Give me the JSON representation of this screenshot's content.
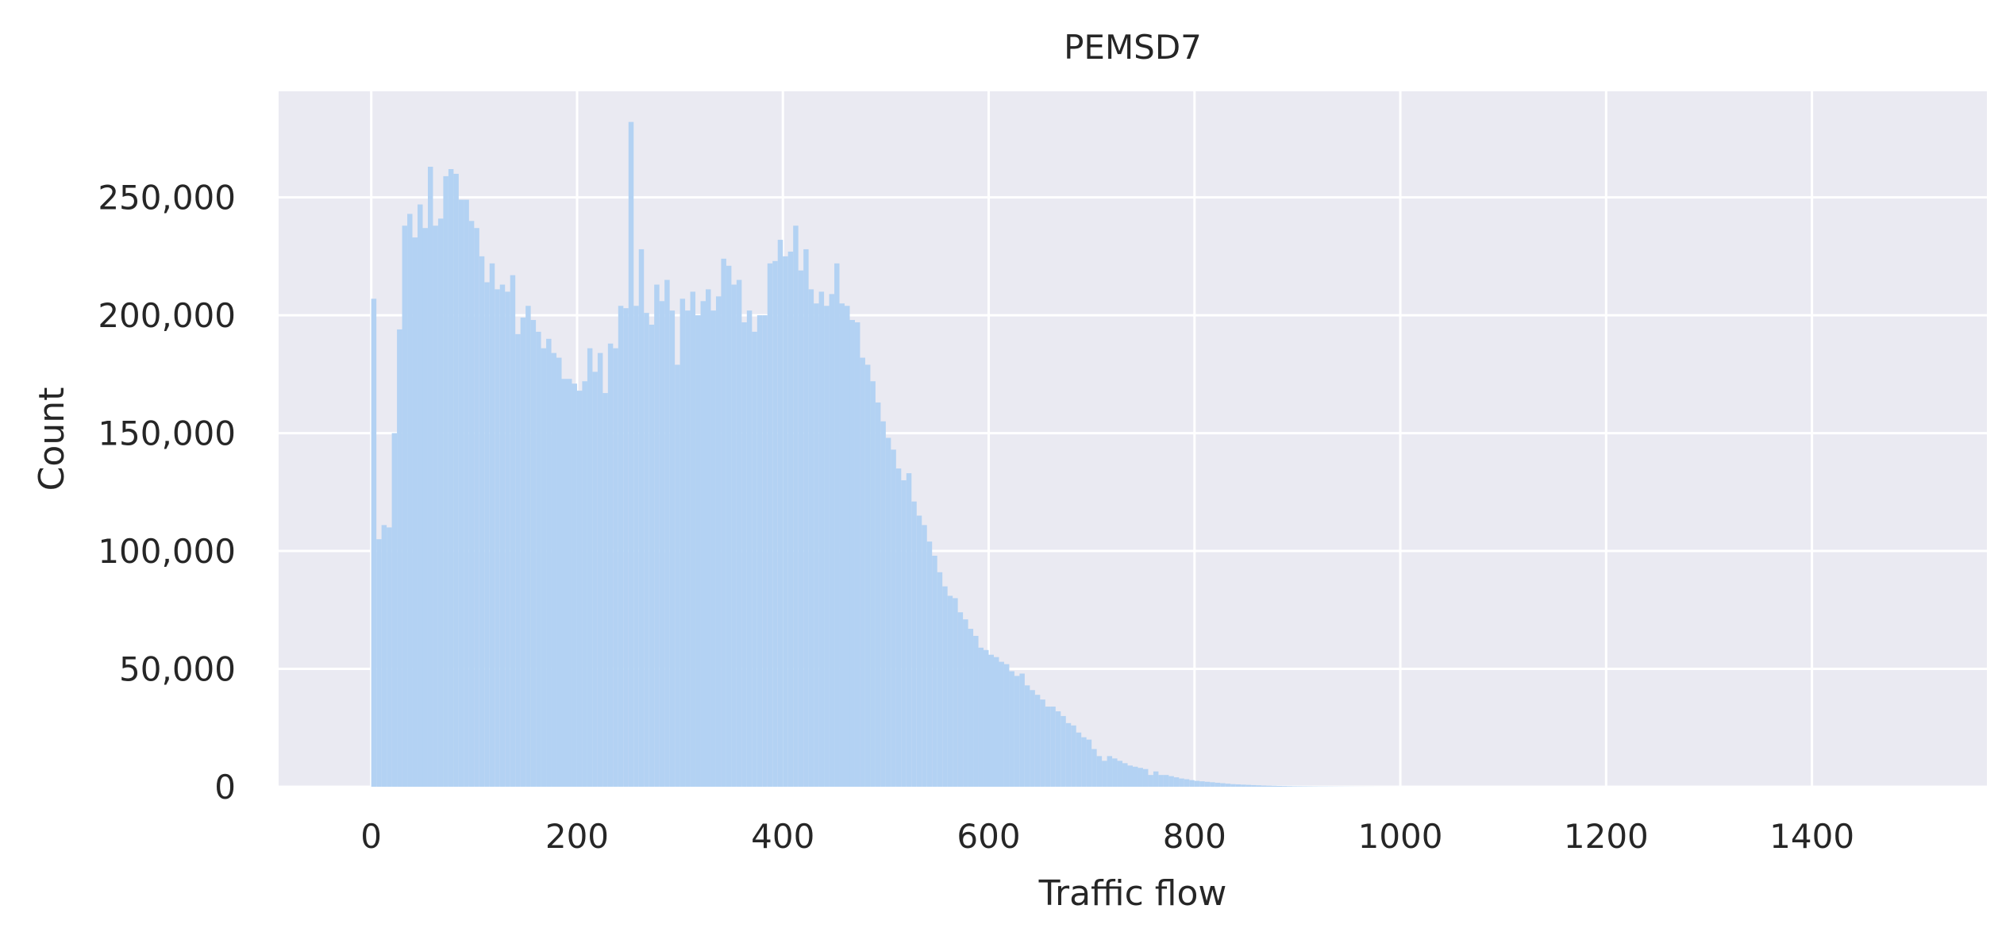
{
  "chart_data": {
    "type": "histogram",
    "title": "PEMSD7",
    "xlabel": "Traffic flow",
    "ylabel": "Count",
    "xlim": [
      -90,
      1570
    ],
    "ylim": [
      0,
      295000
    ],
    "x_ticks": [
      0,
      200,
      400,
      600,
      800,
      1000,
      1200,
      1400
    ],
    "x_tick_labels": [
      "0",
      "200",
      "400",
      "600",
      "800",
      "1000",
      "1200",
      "1400"
    ],
    "y_ticks": [
      0,
      50000,
      100000,
      150000,
      200000,
      250000
    ],
    "y_tick_labels": [
      "0",
      "50,000",
      "100,000",
      "150,000",
      "200,000",
      "250,000"
    ],
    "grid": true,
    "legend": false,
    "colors": {
      "background": "#eaeaf2",
      "grid": "#ffffff",
      "bars": "#b3d2f3"
    },
    "bin_start": 0,
    "bin_width": 5,
    "values": [
      207000,
      105000,
      111000,
      110000,
      150000,
      194000,
      238000,
      243000,
      233000,
      247000,
      237000,
      263000,
      238000,
      241000,
      259000,
      262000,
      260000,
      249000,
      249000,
      240000,
      237000,
      225000,
      214000,
      222000,
      211000,
      213000,
      210000,
      217000,
      192000,
      199000,
      204000,
      198000,
      193000,
      186000,
      190000,
      184000,
      182000,
      173000,
      173000,
      171000,
      168000,
      172000,
      186000,
      176000,
      184000,
      167000,
      188000,
      186000,
      204000,
      203000,
      282000,
      204000,
      228000,
      201000,
      196000,
      213000,
      206000,
      215000,
      202000,
      179000,
      207000,
      202000,
      210000,
      200000,
      206000,
      211000,
      202000,
      208000,
      224000,
      221000,
      213000,
      215000,
      197000,
      202000,
      193000,
      200000,
      200000,
      222000,
      223000,
      232000,
      225000,
      227000,
      238000,
      219000,
      228000,
      211000,
      205000,
      210000,
      204000,
      209000,
      222000,
      205000,
      204000,
      198000,
      197000,
      182000,
      179000,
      172000,
      163000,
      155000,
      148000,
      143000,
      135000,
      130000,
      133000,
      121000,
      115000,
      111000,
      104000,
      98000,
      91000,
      85000,
      81000,
      80000,
      74000,
      71000,
      67000,
      64000,
      59000,
      58000,
      56000,
      55000,
      53000,
      52000,
      49000,
      47000,
      48000,
      43000,
      41000,
      39000,
      37000,
      34000,
      34000,
      32000,
      30000,
      27000,
      26000,
      23000,
      21000,
      20000,
      16000,
      13000,
      11000,
      13000,
      12000,
      11000,
      10000,
      9000,
      8500,
      8000,
      7500,
      5000,
      6500,
      5000,
      5000,
      4500,
      4000,
      3500,
      3200,
      2800,
      2500,
      2300,
      2100,
      1900,
      1700,
      1500,
      1300,
      1100,
      1000,
      900,
      800,
      700,
      600,
      500,
      450,
      400,
      350,
      300,
      250,
      200,
      180,
      160,
      140,
      120,
      100,
      90,
      80,
      70,
      60,
      50,
      40,
      35,
      30,
      25,
      20,
      15,
      10,
      8,
      6,
      4,
      3,
      2,
      2,
      1,
      1
    ]
  }
}
